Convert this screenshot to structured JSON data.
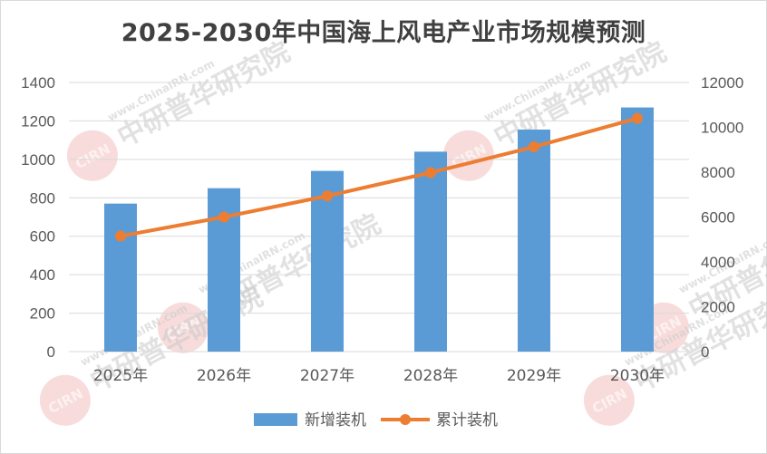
{
  "chart_data": {
    "type": "bar",
    "title": "2025-2030年中国海上风电产业市场规模预测",
    "categories": [
      "2025年",
      "2026年",
      "2027年",
      "2028年",
      "2029年",
      "2030年"
    ],
    "series": [
      {
        "name": "新增装机",
        "type": "bar",
        "axis": "left",
        "color": "#5b9bd5",
        "values": [
          770,
          850,
          940,
          1040,
          1155,
          1270
        ]
      },
      {
        "name": "累计装机",
        "type": "line",
        "axis": "right",
        "color": "#ed7d31",
        "values": [
          5150,
          6000,
          6940,
          7980,
          9130,
          10400
        ]
      }
    ],
    "y_left": {
      "min": 0,
      "max": 1400,
      "step": 200,
      "ticks": [
        "0",
        "200",
        "400",
        "600",
        "800",
        "1000",
        "1200",
        "1400"
      ]
    },
    "y_right": {
      "min": 0,
      "max": 12000,
      "step": 2000,
      "ticks": [
        "0",
        "2000",
        "4000",
        "6000",
        "8000",
        "10000",
        "12000"
      ]
    },
    "grid": true,
    "legend_position": "bottom"
  },
  "watermark": {
    "brand": "中研普华研究院",
    "url": "www.ChinaIRN.com",
    "logo": "CIRN",
    "logo_color": "#e0605a"
  }
}
